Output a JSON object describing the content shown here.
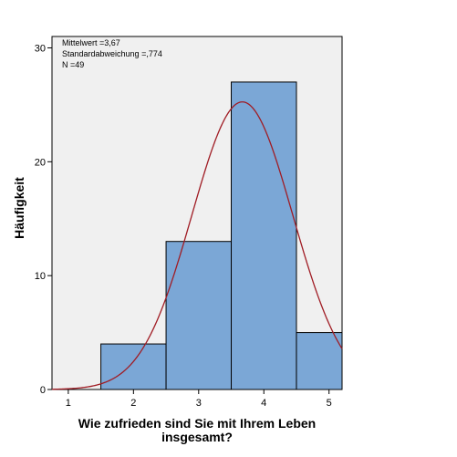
{
  "chart_data": {
    "type": "bar",
    "subtype": "histogram",
    "x": [
      2,
      3,
      4,
      5
    ],
    "values": [
      4,
      13,
      27,
      5
    ],
    "bin_width": 1,
    "xlim": [
      0.75,
      5.2
    ],
    "ylim": [
      0,
      31
    ],
    "xticks": [
      1,
      2,
      3,
      4,
      5
    ],
    "yticks": [
      0,
      10,
      20,
      30
    ],
    "x_tick_labels": [
      "1",
      "2",
      "3",
      "4",
      "5"
    ],
    "y_tick_labels": [
      "0",
      "10",
      "20",
      "30"
    ],
    "ylabel": "Häufigkeit",
    "xlabel_lines": [
      "Wie zufrieden sind Sie mit Ihrem Leben",
      "insgesamt?"
    ],
    "stats": [
      "Mittelwert =3,67",
      "Standardabweichung =,774",
      "N =49"
    ],
    "mean": 3.67,
    "std": 0.774,
    "n": 49,
    "normal_curve": true,
    "grid": false,
    "colors": {
      "plot_background": "#f0f0f0",
      "bar_fill": "#7ba7d6",
      "bar_stroke": "#000000",
      "curve": "#a01c24"
    }
  }
}
